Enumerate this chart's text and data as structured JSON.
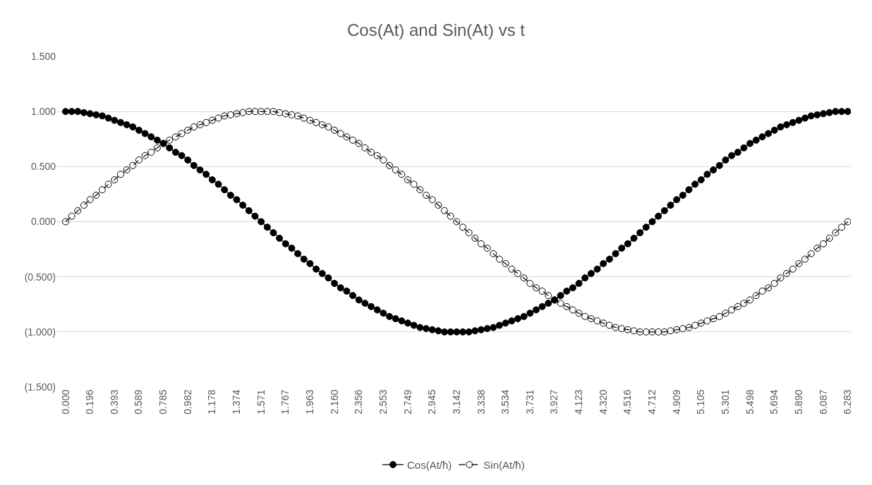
{
  "chart_data": {
    "type": "line",
    "title": "Cos(At) and Sin(At) vs t",
    "categories": [
      "0.000",
      null,
      null,
      null,
      "0.196",
      null,
      null,
      null,
      "0.393",
      null,
      null,
      null,
      "0.589",
      null,
      null,
      null,
      "0.785",
      null,
      null,
      null,
      "0.982",
      null,
      null,
      null,
      "1.178",
      null,
      null,
      null,
      "1.374",
      null,
      null,
      null,
      "1.571",
      null,
      null,
      null,
      "1.767",
      null,
      null,
      null,
      "1.963",
      null,
      null,
      null,
      "2.160",
      null,
      null,
      null,
      "2.356",
      null,
      null,
      null,
      "2.553",
      null,
      null,
      null,
      "2.749",
      null,
      null,
      null,
      "2.945",
      null,
      null,
      null,
      "3.142",
      null,
      null,
      null,
      "3.338",
      null,
      null,
      null,
      "3.534",
      null,
      null,
      null,
      "3.731",
      null,
      null,
      null,
      "3.927",
      null,
      null,
      null,
      "4.123",
      null,
      null,
      null,
      "4.320",
      null,
      null,
      null,
      "4.516",
      null,
      null,
      null,
      "4.712",
      null,
      null,
      null,
      "4.909",
      null,
      null,
      null,
      "5.105",
      null,
      null,
      null,
      "5.301",
      null,
      null,
      null,
      "5.498",
      null,
      null,
      null,
      "5.694",
      null,
      null,
      null,
      "5.890",
      null,
      null,
      null,
      "6.087",
      null,
      null,
      null,
      "6.283"
    ],
    "series": [
      {
        "name": "Cos(At/ħ)",
        "color": "#000000",
        "line_style": "solid",
        "marker": "circle",
        "values": [
          1,
          1,
          1,
          0.99,
          0.98,
          0.97,
          0.96,
          0.94,
          0.92,
          0.9,
          0.88,
          0.86,
          0.83,
          0.8,
          0.77,
          0.74,
          0.71,
          0.67,
          0.63,
          0.6,
          0.56,
          0.51,
          0.47,
          0.43,
          0.38,
          0.34,
          0.29,
          0.24,
          0.2,
          0.15,
          0.1,
          0.05,
          0,
          -0.05,
          -0.1,
          -0.15,
          -0.2,
          -0.24,
          -0.29,
          -0.34,
          -0.38,
          -0.43,
          -0.47,
          -0.51,
          -0.56,
          -0.6,
          -0.63,
          -0.67,
          -0.71,
          -0.74,
          -0.77,
          -0.8,
          -0.83,
          -0.86,
          -0.88,
          -0.9,
          -0.92,
          -0.94,
          -0.96,
          -0.97,
          -0.98,
          -0.99,
          -1,
          -1,
          -1,
          -1,
          -1,
          -0.99,
          -0.98,
          -0.97,
          -0.96,
          -0.94,
          -0.92,
          -0.9,
          -0.88,
          -0.86,
          -0.83,
          -0.8,
          -0.77,
          -0.74,
          -0.71,
          -0.67,
          -0.63,
          -0.6,
          -0.56,
          -0.51,
          -0.47,
          -0.43,
          -0.38,
          -0.34,
          -0.29,
          -0.24,
          -0.2,
          -0.15,
          -0.1,
          -0.05,
          0,
          0.05,
          0.1,
          0.15,
          0.2,
          0.24,
          0.29,
          0.34,
          0.38,
          0.43,
          0.47,
          0.51,
          0.56,
          0.6,
          0.63,
          0.67,
          0.71,
          0.74,
          0.77,
          0.8,
          0.83,
          0.86,
          0.88,
          0.9,
          0.92,
          0.94,
          0.96,
          0.97,
          0.98,
          0.99,
          1,
          1,
          1
        ]
      },
      {
        "name": "Sin(At/ħ)",
        "color": "#000000",
        "line_style": "dashed",
        "marker": "circle",
        "values": [
          0,
          0.05,
          0.1,
          0.15,
          0.2,
          0.24,
          0.29,
          0.34,
          0.38,
          0.43,
          0.47,
          0.51,
          0.56,
          0.6,
          0.63,
          0.67,
          0.71,
          0.74,
          0.77,
          0.8,
          0.83,
          0.86,
          0.88,
          0.9,
          0.92,
          0.94,
          0.96,
          0.97,
          0.98,
          0.99,
          1,
          1,
          1,
          1,
          1,
          0.99,
          0.98,
          0.97,
          0.96,
          0.94,
          0.92,
          0.9,
          0.88,
          0.86,
          0.83,
          0.8,
          0.77,
          0.74,
          0.71,
          0.67,
          0.63,
          0.6,
          0.56,
          0.51,
          0.47,
          0.43,
          0.38,
          0.34,
          0.29,
          0.24,
          0.2,
          0.15,
          0.1,
          0.05,
          0,
          -0.05,
          -0.1,
          -0.15,
          -0.2,
          -0.24,
          -0.29,
          -0.34,
          -0.38,
          -0.43,
          -0.47,
          -0.51,
          -0.56,
          -0.6,
          -0.63,
          -0.67,
          -0.71,
          -0.74,
          -0.77,
          -0.8,
          -0.83,
          -0.86,
          -0.88,
          -0.9,
          -0.92,
          -0.94,
          -0.96,
          -0.97,
          -0.98,
          -0.99,
          -1,
          -1,
          -1,
          -1,
          -1,
          -0.99,
          -0.98,
          -0.97,
          -0.96,
          -0.94,
          -0.92,
          -0.9,
          -0.88,
          -0.86,
          -0.83,
          -0.8,
          -0.77,
          -0.74,
          -0.71,
          -0.67,
          -0.63,
          -0.6,
          -0.56,
          -0.51,
          -0.47,
          -0.43,
          -0.38,
          -0.34,
          -0.29,
          -0.24,
          -0.2,
          -0.15,
          -0.1,
          -0.05,
          0
        ]
      }
    ],
    "ylim": [
      -1.5,
      1.5
    ],
    "yticks": [
      {
        "value": -1.5,
        "label": "(1.500)"
      },
      {
        "value": -1.0,
        "label": "(1.000)"
      },
      {
        "value": -0.5,
        "label": "(0.500)"
      },
      {
        "value": 0,
        "label": "0.000"
      },
      {
        "value": 0.5,
        "label": "0.500"
      },
      {
        "value": 1.0,
        "label": "1.000"
      },
      {
        "value": 1.5,
        "label": "1.500"
      }
    ],
    "grid": "y",
    "legend": "bottom"
  }
}
